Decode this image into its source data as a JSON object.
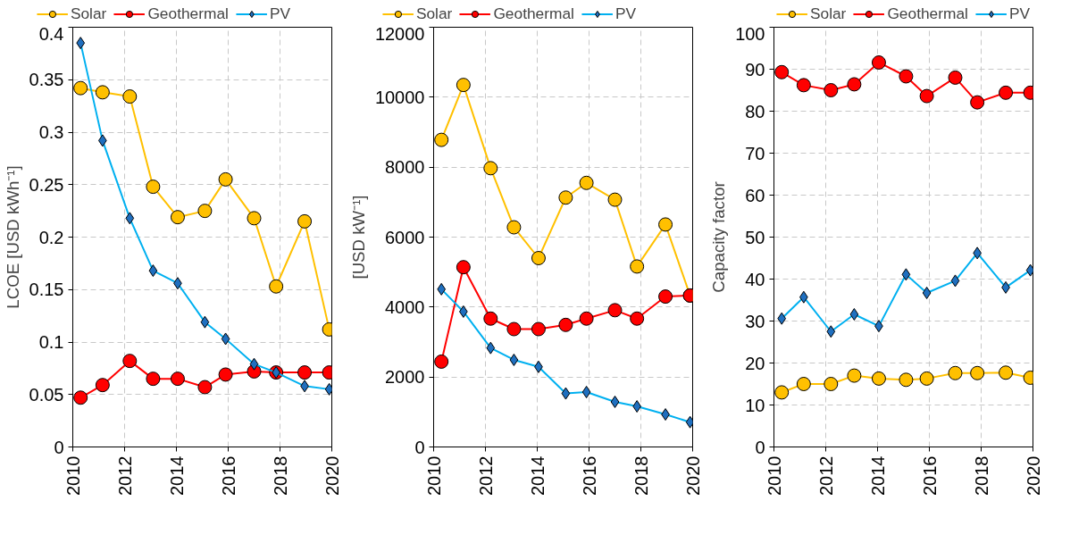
{
  "chart_data": [
    {
      "type": "line",
      "ylabel": "LCOE [USD kWh⁻¹]",
      "x": [
        2010.3,
        2011.15,
        2012.2,
        2013.1,
        2014.05,
        2015.1,
        2015.9,
        2017.0,
        2017.85,
        2018.95,
        2019.9
      ],
      "xlim": [
        2010,
        2020
      ],
      "xticks": [
        2010,
        2012,
        2014,
        2016,
        2018,
        2020
      ],
      "ylim": [
        0,
        0.4
      ],
      "yticks": [
        0,
        0.05,
        0.1,
        0.15,
        0.2,
        0.25,
        0.3,
        0.35,
        0.4
      ],
      "grid": true,
      "legend": "top",
      "line_style": "solid",
      "series": [
        {
          "name": "Solar",
          "color": "#ffc000",
          "marker": "circle",
          "values": [
            0.342,
            0.338,
            0.334,
            0.248,
            0.219,
            0.225,
            0.255,
            0.218,
            0.153,
            0.215,
            0.112
          ]
        },
        {
          "name": "Geothermal",
          "color": "#ff0000",
          "marker": "circle",
          "values": [
            0.047,
            0.059,
            0.082,
            0.065,
            0.065,
            0.057,
            0.069,
            0.072,
            0.071,
            0.071,
            0.071
          ]
        },
        {
          "name": "PV",
          "color": "#00b0f0",
          "marker": "diamond",
          "values": [
            0.385,
            0.292,
            0.218,
            0.168,
            0.156,
            0.119,
            0.103,
            0.079,
            0.071,
            0.058,
            0.055
          ]
        }
      ]
    },
    {
      "type": "line",
      "ylabel": "[USD kW⁻¹]",
      "x": [
        2010.3,
        2011.15,
        2012.2,
        2013.1,
        2014.05,
        2015.1,
        2015.9,
        2017.0,
        2017.85,
        2018.95,
        2019.9
      ],
      "xlim": [
        2010,
        2020
      ],
      "xticks": [
        2010,
        2012,
        2014,
        2016,
        2018,
        2020
      ],
      "ylim": [
        0,
        12000
      ],
      "yticks": [
        0,
        2000,
        4000,
        6000,
        8000,
        10000,
        12000
      ],
      "grid": true,
      "legend": "top",
      "line_style": "solid",
      "series": [
        {
          "name": "Solar",
          "color": "#ffc000",
          "marker": "circle",
          "values": [
            8780,
            10350,
            7970,
            6280,
            5400,
            7130,
            7550,
            7070,
            5160,
            6360,
            4330
          ]
        },
        {
          "name": "Geothermal",
          "color": "#ff0000",
          "marker": "circle",
          "values": [
            2440,
            5140,
            3670,
            3370,
            3370,
            3490,
            3670,
            3910,
            3670,
            4300,
            4330
          ]
        },
        {
          "name": "PV",
          "color": "#00b0f0",
          "marker": "diamond",
          "values": [
            4510,
            3870,
            2830,
            2490,
            2290,
            1530,
            1570,
            1290,
            1160,
            930,
            710
          ]
        }
      ]
    },
    {
      "type": "line",
      "ylabel": "Capacity factor",
      "x": [
        2010.3,
        2011.15,
        2012.2,
        2013.1,
        2014.05,
        2015.1,
        2015.9,
        2017.0,
        2017.85,
        2018.95,
        2019.9
      ],
      "xlim": [
        2010,
        2020
      ],
      "xticks": [
        2010,
        2012,
        2014,
        2016,
        2018,
        2020
      ],
      "ylim": [
        0,
        100
      ],
      "yticks": [
        0,
        10,
        20,
        30,
        40,
        50,
        60,
        70,
        80,
        90,
        100
      ],
      "grid": true,
      "legend": "top",
      "line_style": "solid",
      "series": [
        {
          "name": "Solar",
          "color": "#ffc000",
          "marker": "circle",
          "values": [
            13,
            15,
            15,
            17,
            16.3,
            16,
            16.3,
            17.6,
            17.6,
            17.7,
            16.5
          ]
        },
        {
          "name": "Geothermal",
          "color": "#ff0000",
          "marker": "circle",
          "values": [
            89.3,
            86.2,
            85,
            86.4,
            91.6,
            88.3,
            83.6,
            88,
            82.1,
            84.4,
            84.4
          ]
        },
        {
          "name": "PV",
          "color": "#00b0f0",
          "marker": "diamond",
          "values": [
            30.6,
            35.7,
            27.5,
            31.6,
            28.8,
            41.1,
            36.7,
            39.6,
            46.2,
            38,
            42.1
          ]
        }
      ]
    }
  ]
}
